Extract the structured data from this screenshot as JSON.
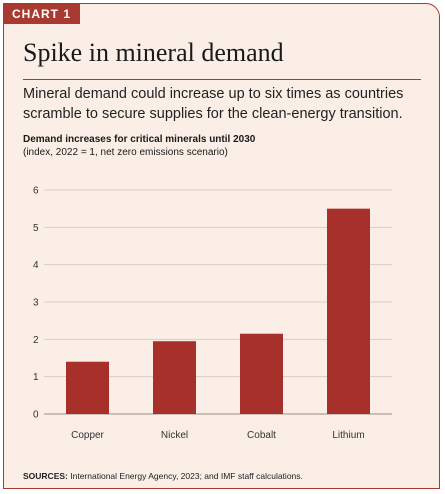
{
  "tag": "CHART 1",
  "headline": "Spike in mineral demand",
  "subtitle": "Mineral demand could increase up to six times as countries scramble to secure supplies for the clean-energy transition.",
  "chart_title": "Demand increases for critical minerals until 2030",
  "chart_note": "(index, 2022 = 1, net zero emissions scenario)",
  "source_label": "SOURCES:",
  "source_text": "International Energy Agency, 2023; and IMF staff calculations.",
  "colors": {
    "accent": "#a83a32",
    "bar": "#a8302b",
    "background": "#fbeee6"
  },
  "chart_data": {
    "type": "bar",
    "title": "Demand increases for critical minerals until 2030",
    "subtitle": "(index, 2022 = 1, net zero emissions scenario)",
    "categories": [
      "Copper",
      "Nickel",
      "Cobalt",
      "Lithium"
    ],
    "values": [
      1.4,
      1.95,
      2.15,
      5.5
    ],
    "ylim": [
      0,
      6
    ],
    "yticks": [
      0,
      1,
      2,
      3,
      4,
      5,
      6
    ],
    "grid": true,
    "legend": "none"
  }
}
